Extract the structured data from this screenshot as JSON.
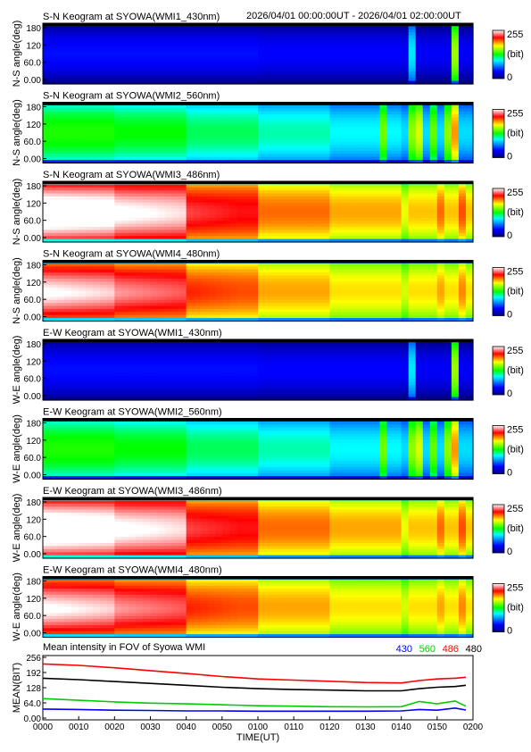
{
  "header": {
    "time_range": "2026/04/01 00:00:00UT - 2026/04/01 02:00:00UT"
  },
  "colorbar": {
    "max": "255",
    "unit": "(bit)",
    "min": "0"
  },
  "chart_data": [
    {
      "type": "heatmap",
      "title": "S-N Keogram at SYOWA(WMI1_430nm)",
      "ylabel": "N-S angle(deg)",
      "yticks": [
        "180",
        "120",
        "60.0",
        "0.00"
      ],
      "ylim": [
        0,
        180
      ],
      "xlim": [
        0,
        120
      ],
      "profile": "blue"
    },
    {
      "type": "heatmap",
      "title": "S-N Keogram at SYOWA(WMI2_560nm)",
      "ylabel": "N-S angle(deg)",
      "yticks": [
        "180",
        "120",
        "60.0",
        "0.00"
      ],
      "ylim": [
        0,
        180
      ],
      "xlim": [
        0,
        120
      ],
      "profile": "green"
    },
    {
      "type": "heatmap",
      "title": "S-N Keogram at SYOWA(WMI3_486nm)",
      "ylabel": "N-S angle(deg)",
      "yticks": [
        "180",
        "120",
        "60.0",
        "0.00"
      ],
      "ylim": [
        0,
        180
      ],
      "xlim": [
        0,
        120
      ],
      "profile": "bright"
    },
    {
      "type": "heatmap",
      "title": "S-N Keogram at SYOWA(WMI4_480nm)",
      "ylabel": "N-S angle(deg)",
      "yticks": [
        "180",
        "120",
        "60.0",
        "0.00"
      ],
      "ylim": [
        0,
        180
      ],
      "xlim": [
        0,
        120
      ],
      "profile": "red"
    },
    {
      "type": "heatmap",
      "title": "E-W Keogram at SYOWA(WMI1_430nm)",
      "ylabel": "W-E angle(deg)",
      "yticks": [
        "180",
        "120",
        "60.0",
        "0.00"
      ],
      "ylim": [
        0,
        180
      ],
      "xlim": [
        0,
        120
      ],
      "profile": "blue"
    },
    {
      "type": "heatmap",
      "title": "E-W Keogram at SYOWA(WMI2_560nm)",
      "ylabel": "W-E angle(deg)",
      "yticks": [
        "180",
        "120",
        "60.0",
        "0.00"
      ],
      "ylim": [
        0,
        180
      ],
      "xlim": [
        0,
        120
      ],
      "profile": "green"
    },
    {
      "type": "heatmap",
      "title": "E-W Keogram at SYOWA(WMI3_486nm)",
      "ylabel": "W-E angle(deg)",
      "yticks": [
        "180",
        "120",
        "60.0",
        "0.00"
      ],
      "ylim": [
        0,
        180
      ],
      "xlim": [
        0,
        120
      ],
      "profile": "bright"
    },
    {
      "type": "heatmap",
      "title": "E-W Keogram at SYOWA(WMI4_480nm)",
      "ylabel": "W-E angle(deg)",
      "yticks": [
        "180",
        "120",
        "60.0",
        "0.00"
      ],
      "ylim": [
        0,
        180
      ],
      "xlim": [
        0,
        120
      ],
      "profile": "red"
    },
    {
      "type": "line",
      "title": "Mean intensity in FOV of Syowa WMI",
      "ylabel": "MEAN(BIT)",
      "xlabel": "TIME(UT)",
      "ylim": [
        0,
        256
      ],
      "xlim": [
        0,
        120
      ],
      "yticks": [
        "256",
        "192",
        "128",
        "64.0",
        "0.00"
      ],
      "xticks": [
        "0000",
        "0010",
        "0020",
        "0030",
        "0040",
        "0050",
        "0100",
        "0110",
        "0120",
        "0130",
        "0140",
        "0150",
        "0200"
      ],
      "x": [
        0,
        10,
        20,
        30,
        40,
        50,
        60,
        70,
        80,
        90,
        100,
        105,
        110,
        115,
        118
      ],
      "series": [
        {
          "name": "430",
          "color": "#0000ff",
          "values": [
            38,
            36,
            33,
            32,
            30,
            30,
            29,
            29,
            29,
            29,
            30,
            36,
            33,
            42,
            34
          ]
        },
        {
          "name": "560",
          "color": "#00cc00",
          "values": [
            82,
            75,
            68,
            63,
            60,
            56,
            52,
            50,
            48,
            47,
            48,
            70,
            60,
            72,
            50
          ]
        },
        {
          "name": "486",
          "color": "#ff0000",
          "values": [
            228,
            222,
            212,
            200,
            188,
            175,
            165,
            160,
            155,
            150,
            148,
            158,
            165,
            168,
            172
          ]
        },
        {
          "name": "480",
          "color": "#000000",
          "values": [
            168,
            162,
            154,
            146,
            138,
            130,
            124,
            120,
            118,
            115,
            115,
            124,
            130,
            133,
            138
          ]
        }
      ]
    }
  ]
}
